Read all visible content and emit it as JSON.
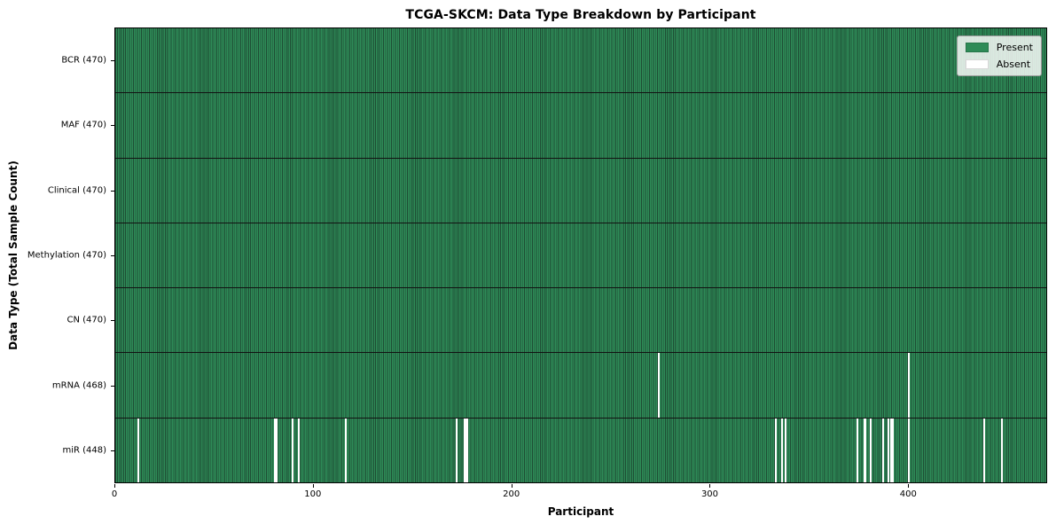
{
  "title": "TCGA-SKCM: Data Type Breakdown by Participant",
  "chart_data": {
    "type": "heatmap",
    "title": "TCGA-SKCM: Data Type Breakdown by Participant",
    "xlabel": "Participant",
    "ylabel": "Data Type (Total Sample Count)",
    "n_participants": 470,
    "x_ticks": [
      0,
      100,
      200,
      300,
      400
    ],
    "legend": {
      "present": "Present",
      "absent": "Absent"
    },
    "legend_position": "upper right",
    "grid": "row-dividers",
    "colors": {
      "present": "#2e8b57",
      "present_edge": "#1e4d34",
      "absent": "#ffffff",
      "divider": "#121212",
      "spine": "#000000"
    },
    "rows": [
      {
        "name": "BCR",
        "label": "BCR (470)",
        "present_count": 470,
        "absent_participants": []
      },
      {
        "name": "MAF",
        "label": "MAF (470)",
        "present_count": 470,
        "absent_participants": []
      },
      {
        "name": "Clinical",
        "label": "Clinical (470)",
        "present_count": 470,
        "absent_participants": []
      },
      {
        "name": "Methylation",
        "label": "Methylation (470)",
        "present_count": 470,
        "absent_participants": []
      },
      {
        "name": "CN",
        "label": "CN (470)",
        "present_count": 470,
        "absent_participants": []
      },
      {
        "name": "mRNA",
        "label": "mRNA (468)",
        "present_count": 468,
        "absent_participants": [
          274,
          400
        ]
      },
      {
        "name": "miR",
        "label": "miR (448)",
        "present_count": 448,
        "absent_participants": [
          11,
          80,
          81,
          89,
          92,
          116,
          172,
          176,
          177,
          333,
          336,
          338,
          374,
          378,
          381,
          387,
          390,
          391,
          392,
          400,
          438,
          447
        ]
      }
    ]
  }
}
